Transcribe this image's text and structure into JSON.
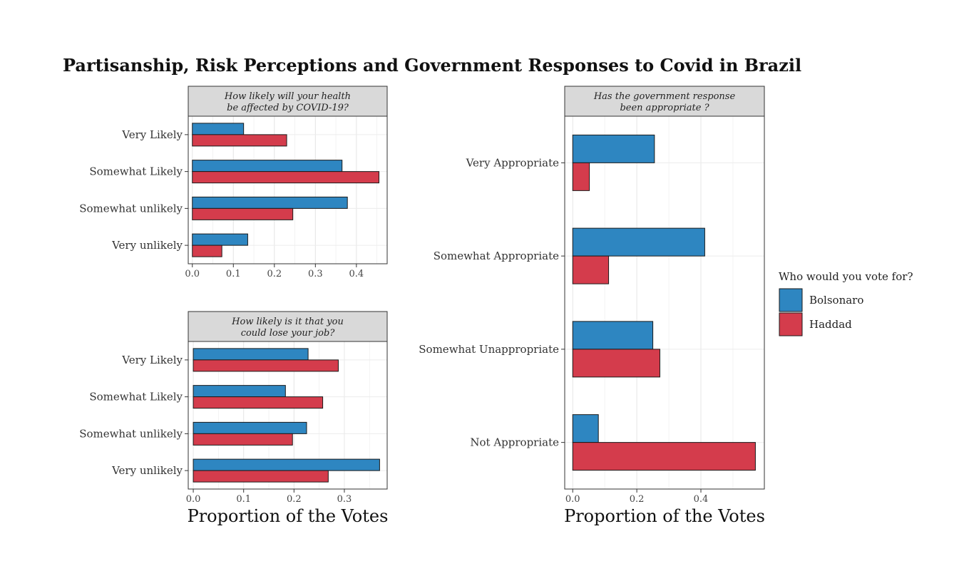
{
  "title": "Partisanship, Risk Perceptions and Government Responses to Covid in Brazil",
  "legend": {
    "title": "Who would you vote for?",
    "items": [
      {
        "name": "Bolsonaro",
        "color": "#2e86c1"
      },
      {
        "name": "Haddad",
        "color": "#d43c4c"
      }
    ]
  },
  "chart_data": [
    {
      "type": "bar",
      "orientation": "horizontal",
      "strip": [
        "How likely will your health",
        "be affected by COVID-19?"
      ],
      "categories": [
        "Very Likely",
        "Somewhat Likely",
        "Somewhat unlikely",
        "Very unlikely"
      ],
      "series": [
        {
          "name": "Bolsonaro",
          "values": [
            0.125,
            0.365,
            0.378,
            0.135
          ]
        },
        {
          "name": "Haddad",
          "values": [
            0.23,
            0.455,
            0.245,
            0.072
          ]
        }
      ],
      "xlim": [
        -0.01,
        0.475
      ],
      "xticks": [
        "0.0",
        "0.1",
        "0.2",
        "0.3",
        "0.4"
      ],
      "xlabel": "",
      "grid": true
    },
    {
      "type": "bar",
      "orientation": "horizontal",
      "strip": [
        "How likely is it that you",
        "could lose your job?"
      ],
      "categories": [
        "Very Likely",
        "Somewhat Likely",
        "Somewhat unlikely",
        "Very unlikely"
      ],
      "series": [
        {
          "name": "Bolsonaro",
          "values": [
            0.228,
            0.183,
            0.225,
            0.37
          ]
        },
        {
          "name": "Haddad",
          "values": [
            0.288,
            0.257,
            0.197,
            0.268
          ]
        }
      ],
      "xlim": [
        -0.01,
        0.385
      ],
      "xticks": [
        "0.0",
        "0.1",
        "0.2",
        "0.3"
      ],
      "xlabel": "Proportion of the Votes",
      "grid": true
    },
    {
      "type": "bar",
      "orientation": "horizontal",
      "strip": [
        "Has the government response",
        "been appropriate ?"
      ],
      "categories": [
        "Very Appropriate",
        "Somewhat Appropriate",
        "Somewhat Unappropriate",
        "Not Appropriate"
      ],
      "series": [
        {
          "name": "Bolsonaro",
          "values": [
            0.255,
            0.412,
            0.25,
            0.08
          ]
        },
        {
          "name": "Haddad",
          "values": [
            0.052,
            0.112,
            0.272,
            0.57
          ]
        }
      ],
      "xlim": [
        -0.025,
        0.598
      ],
      "xticks": [
        "0.0",
        "0.2",
        "0.4"
      ],
      "xlabel": "Proportion of the Votes",
      "grid": true
    }
  ]
}
